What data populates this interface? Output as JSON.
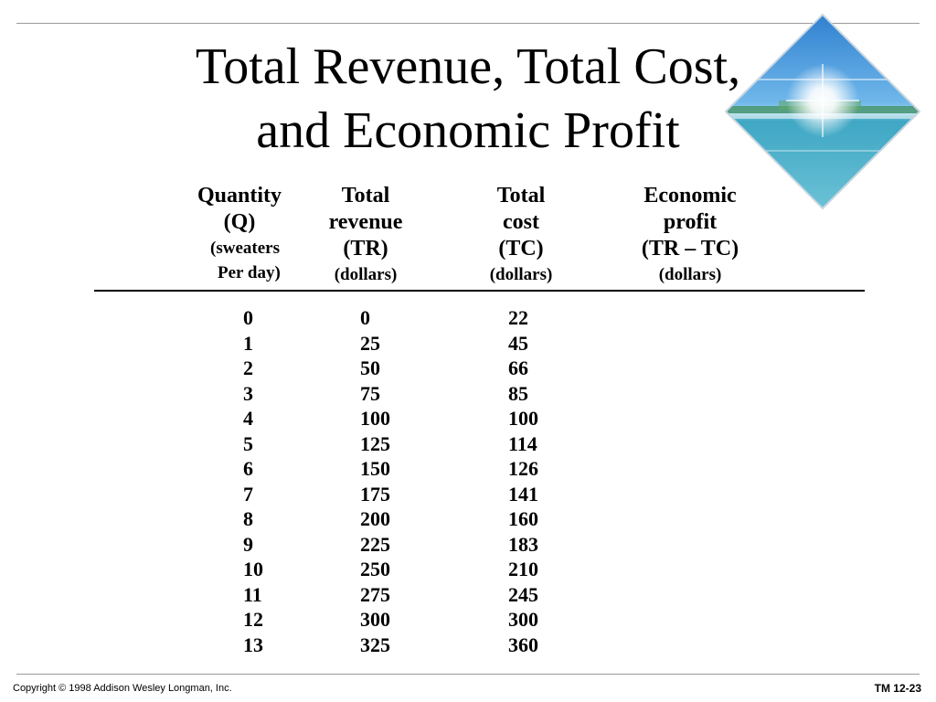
{
  "title": {
    "line1": "Total Revenue, Total Cost,",
    "line2": "and Economic Profit"
  },
  "headers": {
    "quantity": {
      "line1": "Quantity",
      "line2": "(Q)",
      "line3": "(sweaters",
      "line4": "Per day)"
    },
    "total_revenue": {
      "line1": "Total",
      "line2": "revenue",
      "line3": "(TR)",
      "line4": "(dollars)"
    },
    "total_cost": {
      "line1": "Total",
      "line2": "cost",
      "line3": "(TC)",
      "line4": "(dollars)"
    },
    "economic_profit": {
      "line1": "Economic",
      "line2": "profit",
      "line3": "(TR – TC)",
      "line4": "(dollars)"
    }
  },
  "table": {
    "quantity": [
      "0",
      "1",
      "2",
      "3",
      "4",
      "5",
      "6",
      "7",
      "8",
      "9",
      "10",
      "11",
      "12",
      "13"
    ],
    "total_revenue": [
      "0",
      "25",
      "50",
      "75",
      "100",
      "125",
      "150",
      "175",
      "200",
      "225",
      "250",
      "275",
      "300",
      "325"
    ],
    "total_cost": [
      "22",
      "45",
      "66",
      "85",
      "100",
      "114",
      "126",
      "141",
      "160",
      "183",
      "210",
      "245",
      "300",
      "360"
    ]
  },
  "footer": {
    "copyright": "Copyright © 1998 Addison Wesley Longman, Inc.",
    "slide_number": "TM 12-23"
  },
  "decoration": {
    "image": "tropical-beach-diamond",
    "colors": {
      "sky": "#3d8fd6",
      "sea": "#4fb0c9",
      "sun": "#ffffff"
    }
  }
}
